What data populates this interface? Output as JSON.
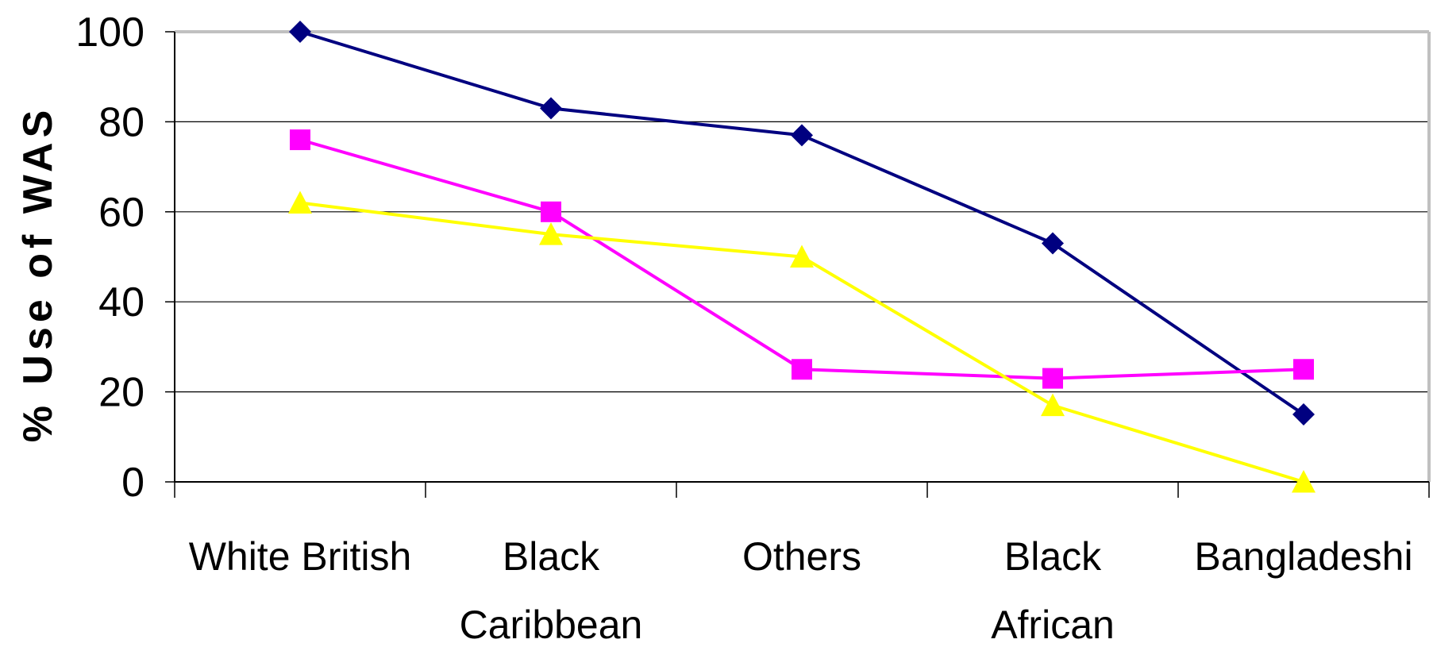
{
  "chart_data": {
    "type": "line",
    "title": "",
    "xlabel": "",
    "ylabel": "% Use of WAS",
    "ylim": [
      0,
      100
    ],
    "yticks": [
      0,
      20,
      40,
      60,
      80,
      100
    ],
    "grid": true,
    "legend": "none",
    "categories": [
      [
        "White British"
      ],
      [
        "Black",
        "Caribbean"
      ],
      [
        "Others"
      ],
      [
        "Black",
        "African"
      ],
      [
        "Bangladeshi"
      ]
    ],
    "series": [
      {
        "values": [
          100,
          83,
          77,
          53,
          15
        ],
        "color": "#000080",
        "marker": "diamond"
      },
      {
        "values": [
          76,
          60,
          25,
          23,
          25
        ],
        "color": "#ff00ff",
        "marker": "square"
      },
      {
        "values": [
          62,
          55,
          50,
          17,
          0
        ],
        "color": "#ffff00",
        "marker": "triangle"
      }
    ]
  }
}
